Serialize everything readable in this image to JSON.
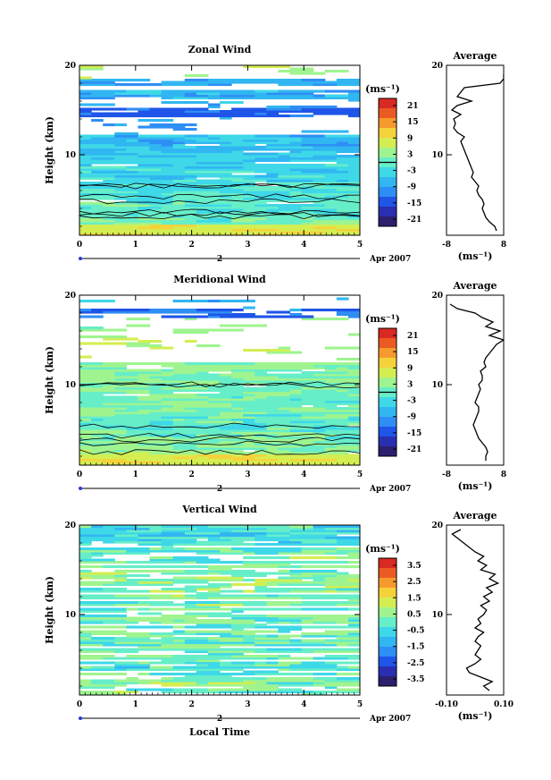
{
  "chart_data": [
    {
      "type": "heatmap",
      "title": "Zonal Wind",
      "ylabel": "Height (km)",
      "xlabel": "",
      "x_ticks": [
        "0",
        "1",
        "2",
        "3",
        "4",
        "5"
      ],
      "y_ticks": [
        "10",
        "20"
      ],
      "xlim": [
        0,
        5
      ],
      "ylim": [
        1,
        20
      ],
      "date_label": "Apr 2007",
      "day_label": "2",
      "colorbar": {
        "unit_label": "(ms⁻¹)",
        "ticks": [
          "21",
          "15",
          "9",
          "3",
          "-3",
          "-9",
          "-15",
          "-21"
        ],
        "range": [
          -24,
          24
        ]
      },
      "average_panel": {
        "title": "Average",
        "xlabel": "(ms⁻¹)",
        "x_ticks": [
          "-8",
          "8"
        ],
        "y_ticks": [
          "10",
          "20"
        ],
        "xlim": [
          -8,
          8
        ],
        "ylim": [
          1,
          20
        ],
        "profile": {
          "height": [
            1.5,
            2,
            2.5,
            3,
            3.5,
            4,
            4.5,
            5,
            5.5,
            6,
            6.5,
            7,
            7.5,
            8,
            8.5,
            9,
            9.5,
            10,
            10.5,
            11,
            11.5,
            12,
            12.5,
            13,
            13.5,
            14,
            14.5,
            15,
            15.5,
            16,
            16.5,
            17,
            17.5,
            18,
            18.5,
            19
          ],
          "value": [
            6,
            5.5,
            4,
            3,
            2.5,
            2,
            2.5,
            2,
            1,
            0.5,
            1,
            0,
            -1,
            -0.5,
            -1,
            -1.5,
            -2,
            -2.5,
            -3,
            -3.5,
            -4,
            -3,
            -5,
            -6,
            -5.5,
            -6,
            -4,
            -6.5,
            -5,
            -1,
            -5,
            -4,
            -3,
            7,
            8,
            8
          ]
        }
      },
      "overview": "Mostly cyan/light-blue fields (about -3 to -9 m/s) with white data gaps; thin blue layer near 14-17 km; green/yellow (positive) layer near 1.5-2.5 km"
    },
    {
      "type": "heatmap",
      "title": "Meridional Wind",
      "ylabel": "Height (km)",
      "xlabel": "",
      "x_ticks": [
        "0",
        "1",
        "2",
        "3",
        "4",
        "5"
      ],
      "y_ticks": [
        "10",
        "20"
      ],
      "xlim": [
        0,
        5
      ],
      "ylim": [
        1,
        20
      ],
      "date_label": "Apr 2007",
      "day_label": "2",
      "colorbar": {
        "unit_label": "(ms⁻¹)",
        "ticks": [
          "21",
          "15",
          "9",
          "3",
          "-3",
          "-9",
          "-15",
          "-21"
        ],
        "range": [
          -24,
          24
        ]
      },
      "average_panel": {
        "title": "Average",
        "xlabel": "(ms⁻¹)",
        "x_ticks": [
          "-8",
          "8"
        ],
        "y_ticks": [
          "10",
          "20"
        ],
        "xlim": [
          -8,
          8
        ],
        "ylim": [
          1,
          20
        ],
        "profile": {
          "height": [
            1.5,
            2,
            2.5,
            3,
            3.5,
            4,
            4.5,
            5,
            5.5,
            6,
            6.5,
            7,
            7.5,
            8,
            8.5,
            9,
            9.5,
            10,
            10.5,
            11,
            11.5,
            12,
            12.5,
            13,
            13.5,
            14,
            14.5,
            15,
            15.5,
            16,
            16.5,
            17,
            17.5,
            18,
            18.5,
            19
          ],
          "value": [
            3,
            3,
            3.5,
            3,
            2,
            1,
            0.5,
            0,
            -0.5,
            0,
            0.5,
            1,
            1,
            0,
            0.5,
            1,
            1.5,
            1,
            2,
            2,
            1.5,
            3,
            2.5,
            3,
            4,
            5,
            6,
            8,
            4,
            7,
            3,
            5,
            2,
            0,
            -5,
            -7
          ]
        }
      },
      "overview": "Mostly green (near 0 to +3 m/s) between 1 and 12 km with black zero contours; white gaps above 12 km; blue patches near 17-18 km; yellow near 1.5-2 km"
    },
    {
      "type": "heatmap",
      "title": "Vertical Wind",
      "ylabel": "Height (km)",
      "xlabel": "Local Time",
      "x_ticks": [
        "0",
        "1",
        "2",
        "3",
        "4",
        "5"
      ],
      "y_ticks": [
        "10",
        "20"
      ],
      "xlim": [
        0,
        5
      ],
      "ylim": [
        1,
        20
      ],
      "date_label": "Apr 2007",
      "day_label": "2",
      "colorbar": {
        "unit_label": "(ms⁻¹)",
        "ticks": [
          "3.5",
          "2.5",
          "1.5",
          "0.5",
          "-0.5",
          "-1.5",
          "-2.5",
          "-3.5"
        ],
        "range": [
          -4,
          4
        ]
      },
      "average_panel": {
        "title": "Average",
        "xlabel": "(ms⁻¹)",
        "x_ticks": [
          "-0.10",
          "0.10"
        ],
        "y_ticks": [
          "10",
          "20"
        ],
        "xlim": [
          -0.1,
          0.1
        ],
        "ylim": [
          1,
          20
        ],
        "profile": {
          "height": [
            1.5,
            2,
            2.5,
            3,
            3.5,
            4,
            4.5,
            5,
            5.5,
            6,
            6.5,
            7,
            7.5,
            8,
            8.5,
            9,
            9.5,
            10,
            10.5,
            11,
            11.5,
            12,
            12.5,
            13,
            13.5,
            14,
            14.5,
            15,
            15.5,
            16,
            16.5,
            17,
            17.5,
            18,
            18.5,
            19,
            19.5
          ],
          "value": [
            0.05,
            0.03,
            0.06,
            0.02,
            -0.02,
            -0.03,
            0,
            0.02,
            0,
            0.01,
            0.02,
            0,
            0.01,
            0.03,
            0,
            0.02,
            0.01,
            0.03,
            0.04,
            0.02,
            0.05,
            0.03,
            0.06,
            0.04,
            0.08,
            0.05,
            0.07,
            0.02,
            0.04,
            0.01,
            0.03,
            0,
            -0.02,
            -0.04,
            -0.06,
            -0.08,
            -0.05
          ]
        }
      },
      "overview": "Cyan/light-green noisy field (about -0.5 to +0.5 m/s) across 1-20 km with many white horizontal gaps"
    }
  ]
}
